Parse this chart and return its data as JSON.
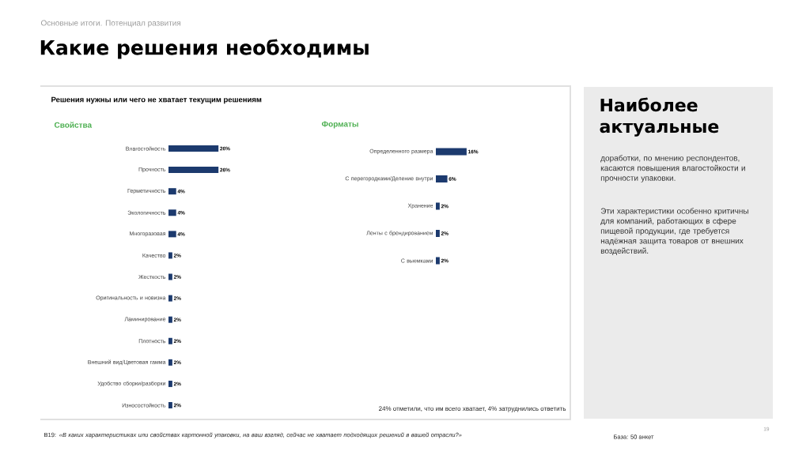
{
  "chart_data": [
    {
      "type": "bar",
      "orientation": "horizontal",
      "title": "Свойства",
      "color": "#1c3a6e",
      "categories": [
        "Влагостойкость",
        "Прочность",
        "Герметичность",
        "Экологичность",
        "Многоразовая",
        "Качество",
        "Жесткость",
        "Оригинальность и новизна",
        "Ламинирование",
        "Плотность",
        "Внешний вид/Цветовая гамма",
        "Удобство сборки/разборки",
        "Износостойкость"
      ],
      "values": [
        26,
        26,
        4,
        4,
        4,
        2,
        2,
        2,
        2,
        2,
        2,
        2,
        2
      ],
      "value_labels": [
        "26%",
        "26%",
        "4%",
        "4%",
        "4%",
        "2%",
        "2%",
        "2%",
        "2%",
        "2%",
        "2%",
        "2%",
        "2%"
      ],
      "annotations": [
        "Основные итоги. Потенциал развития",
        "Какие решения необходимы",
        "Решения нужны или чего не хватает текущим решениям",
        "B19: *«В каких характеристиках или свойствах картонной упаковки, на ваш взгляд, сейчас не хватает подходящих решений в вашей отрасли?»*",
        "База: 50 анкет",
        "19"
      ]
    },
    {
      "type": "bar",
      "orientation": "horizontal",
      "title": "Форматы",
      "color": "#1c3a6e",
      "categories": [
        "Определенного размера",
        "С перегородками/Деление внутри",
        "Хранение",
        "Ленты с брендированием",
        "С выемками"
      ],
      "values": [
        16,
        6,
        2,
        2,
        2
      ],
      "value_labels": [
        "16%",
        "6%",
        "2%",
        "2%",
        "2%"
      ],
      "annotations": [
        "24% отметили, что им всего хватает, 4% затруднились ответить"
      ]
    },
    {
      "type": "other",
      "title": "Наиболее актуальные",
      "annotations": [
        "доработки, по мнению респондентов, касаются повышения влагостойкости и прочности упаковки.",
        "Эти характеристики особенно критичны для компаний, работающих в сфере пищевой продукции, где требуется надёжная защита товаров от внешних воздействий."
      ]
    }
  ]
}
